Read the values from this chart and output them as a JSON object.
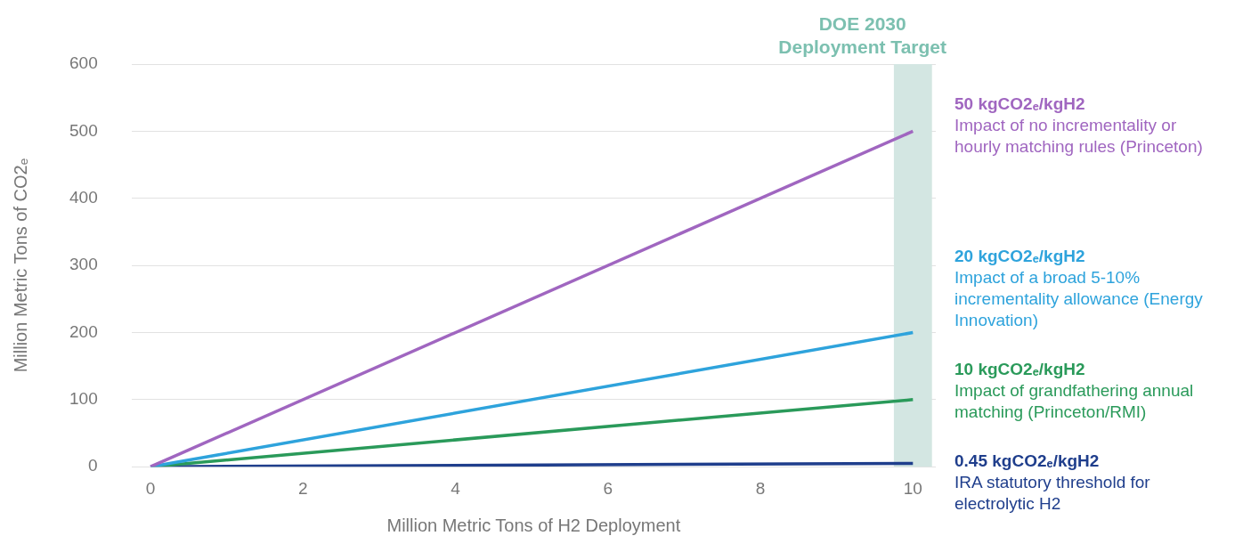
{
  "chart_data": {
    "type": "line",
    "xlabel": "Million Metric Tons of H2 Deployment",
    "ylabel": "Million Metric Tons of CO2ₑ",
    "x": [
      0,
      10
    ],
    "xlim": [
      -0.25,
      10.3
    ],
    "xticks": [
      0,
      2,
      4,
      6,
      8,
      10
    ],
    "ylim": [
      0,
      600
    ],
    "yticks": [
      0,
      100,
      200,
      300,
      400,
      500,
      600
    ],
    "grid": "y",
    "legend": false,
    "marker": "none",
    "line_style": "solid",
    "series": [
      {
        "name": "50 kgCO2ₑ/kgH2",
        "color": "#a066c0",
        "values": [
          0,
          500
        ]
      },
      {
        "name": "20 kgCO2ₑ/kgH2",
        "color": "#2ea3dc",
        "values": [
          0,
          200
        ]
      },
      {
        "name": "10 kgCO2ₑ/kgH2",
        "color": "#2a9a5a",
        "values": [
          0,
          100
        ]
      },
      {
        "name": "0.45 kgCO2ₑ/kgH2",
        "color": "#1f3e8c",
        "values": [
          0,
          5
        ]
      }
    ],
    "bands": [
      {
        "axis": "x",
        "from": 9.75,
        "to": 10.25,
        "label": "DOE 2030 Deployment Target",
        "color": "#d3e6e2"
      }
    ],
    "annotations": [
      "Impact of no incrementality or hourly matching rules (Princeton)",
      "Impact of a broad 5-10% incrementality allowance (Energy Innovation)",
      "Impact of grandfathering annual matching (Princeton/RMI)",
      "IRA statutory threshold for electrolytic H2"
    ]
  }
}
